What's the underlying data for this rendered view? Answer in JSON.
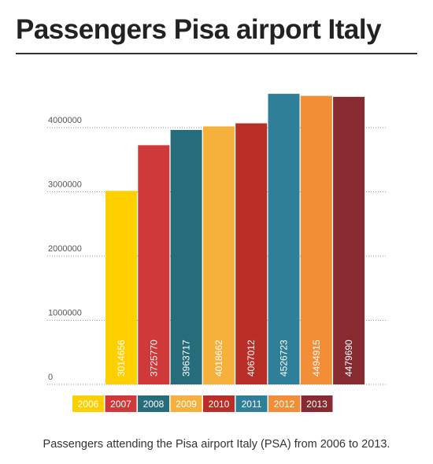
{
  "title": "Passengers Pisa airport Italy",
  "caption": "Passengers attending the Pisa airport Italy (PSA) from 2006 to 2013.",
  "chart_data": {
    "type": "bar",
    "title": "Passengers Pisa airport Italy",
    "xlabel": "",
    "ylabel": "",
    "categories": [
      "2006",
      "2007",
      "2008",
      "2009",
      "2010",
      "2011",
      "2012",
      "2013"
    ],
    "values": [
      3014656,
      3725770,
      3963717,
      4018662,
      4067012,
      4526723,
      4494915,
      4479690
    ],
    "colors": [
      "#FFD000",
      "#D0393A",
      "#266C7A",
      "#F5B13C",
      "#B92E27",
      "#2F7F99",
      "#F28E35",
      "#872B31"
    ],
    "y_ticks": [
      0,
      1000000,
      2000000,
      3000000,
      4000000
    ],
    "ylim": [
      0,
      4650000
    ],
    "grid": "dotted horizontal",
    "legend": "bottom"
  }
}
